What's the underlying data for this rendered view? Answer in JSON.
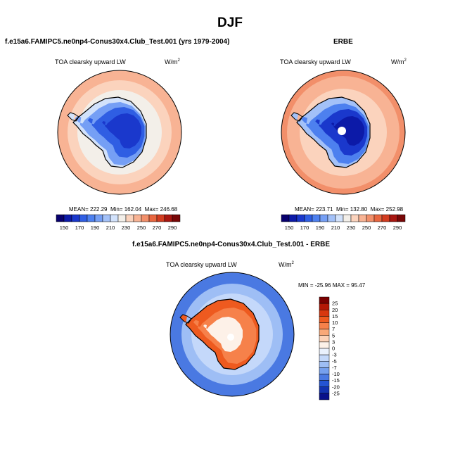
{
  "main_title": "DJF",
  "panels": {
    "model": {
      "title": "f.e15a6.FAMIPC5.ne0np4-Conus30x4.Club_Test.001 (yrs 1979-2004)",
      "variable": "TOA clearsky upward LW",
      "units": "W/m",
      "units_sup": "2",
      "mean_label": "MEAN= 222.29",
      "min_label": "Min= 162.04",
      "max_label": "Max= 246.68"
    },
    "obs": {
      "title": "ERBE",
      "variable": "TOA clearsky upward LW",
      "units": "W/m",
      "units_sup": "2",
      "mean_label": "MEAN= 223.71",
      "min_label": "Min= 132.80",
      "max_label": "Max= 252.98"
    },
    "diff": {
      "title": "f.e15a6.FAMIPC5.ne0np4-Conus30x4.Club_Test.001 - ERBE",
      "variable": "TOA clearsky upward LW",
      "units": "W/m",
      "units_sup": "2",
      "minmax_label": "MIN = -25.96 MAX = 95.47"
    }
  },
  "chart_data": [
    {
      "type": "heatmap",
      "title": "f.e15a6.FAMIPC5.ne0np4-Conus30x4.Club_Test.001 (yrs 1979-2004)",
      "variable": "TOA clearsky upward LW",
      "units": "W/m2",
      "projection": "south polar stereographic",
      "mean": 222.29,
      "min": 162.04,
      "max": 246.68,
      "colorbar_levels": [
        150,
        160,
        170,
        180,
        190,
        200,
        210,
        220,
        230,
        240,
        250,
        260,
        270,
        280,
        290
      ],
      "colorbar_labels": [
        "150",
        "170",
        "190",
        "210",
        "230",
        "250",
        "270",
        "290"
      ],
      "colorbar_colors": [
        "#08006e",
        "#0c1aa8",
        "#1a38cc",
        "#2f5ee3",
        "#4d80ef",
        "#759ff5",
        "#a3c1f8",
        "#d2e2fb",
        "#f3efe9",
        "#fbd3bd",
        "#f8b394",
        "#f28f6a",
        "#e8663f",
        "#d23c20",
        "#a81610",
        "#780707"
      ]
    },
    {
      "type": "heatmap",
      "title": "ERBE",
      "variable": "TOA clearsky upward LW",
      "units": "W/m2",
      "projection": "south polar stereographic",
      "mean": 223.71,
      "min": 132.8,
      "max": 252.98,
      "colorbar_levels": [
        150,
        160,
        170,
        180,
        190,
        200,
        210,
        220,
        230,
        240,
        250,
        260,
        270,
        280,
        290
      ],
      "colorbar_labels": [
        "150",
        "170",
        "190",
        "210",
        "230",
        "250",
        "270",
        "290"
      ],
      "colorbar_colors": [
        "#08006e",
        "#0c1aa8",
        "#1a38cc",
        "#2f5ee3",
        "#4d80ef",
        "#759ff5",
        "#a3c1f8",
        "#d2e2fb",
        "#f3efe9",
        "#fbd3bd",
        "#f8b394",
        "#f28f6a",
        "#e8663f",
        "#d23c20",
        "#a81610",
        "#780707"
      ]
    },
    {
      "type": "heatmap",
      "title": "f.e15a6.FAMIPC5.ne0np4-Conus30x4.Club_Test.001 - ERBE",
      "variable": "TOA clearsky upward LW",
      "units": "W/m2",
      "projection": "south polar stereographic",
      "min": -25.96,
      "max": 95.47,
      "colorbar_labels": [
        "25",
        "20",
        "15",
        "10",
        "7",
        "5",
        "3",
        "0",
        "-3",
        "-5",
        "-7",
        "-10",
        "-15",
        "-20",
        "-25"
      ],
      "colorbar_colors": [
        "#7a0000",
        "#b31705",
        "#d8380f",
        "#ee5a1f",
        "#f6814a",
        "#f9a878",
        "#fcd2b8",
        "#fdf1e8",
        "#eaf1fd",
        "#c4d8fa",
        "#9ebef5",
        "#76a0ee",
        "#4a79e2",
        "#2454d3",
        "#1232b0",
        "#08108a"
      ]
    }
  ]
}
